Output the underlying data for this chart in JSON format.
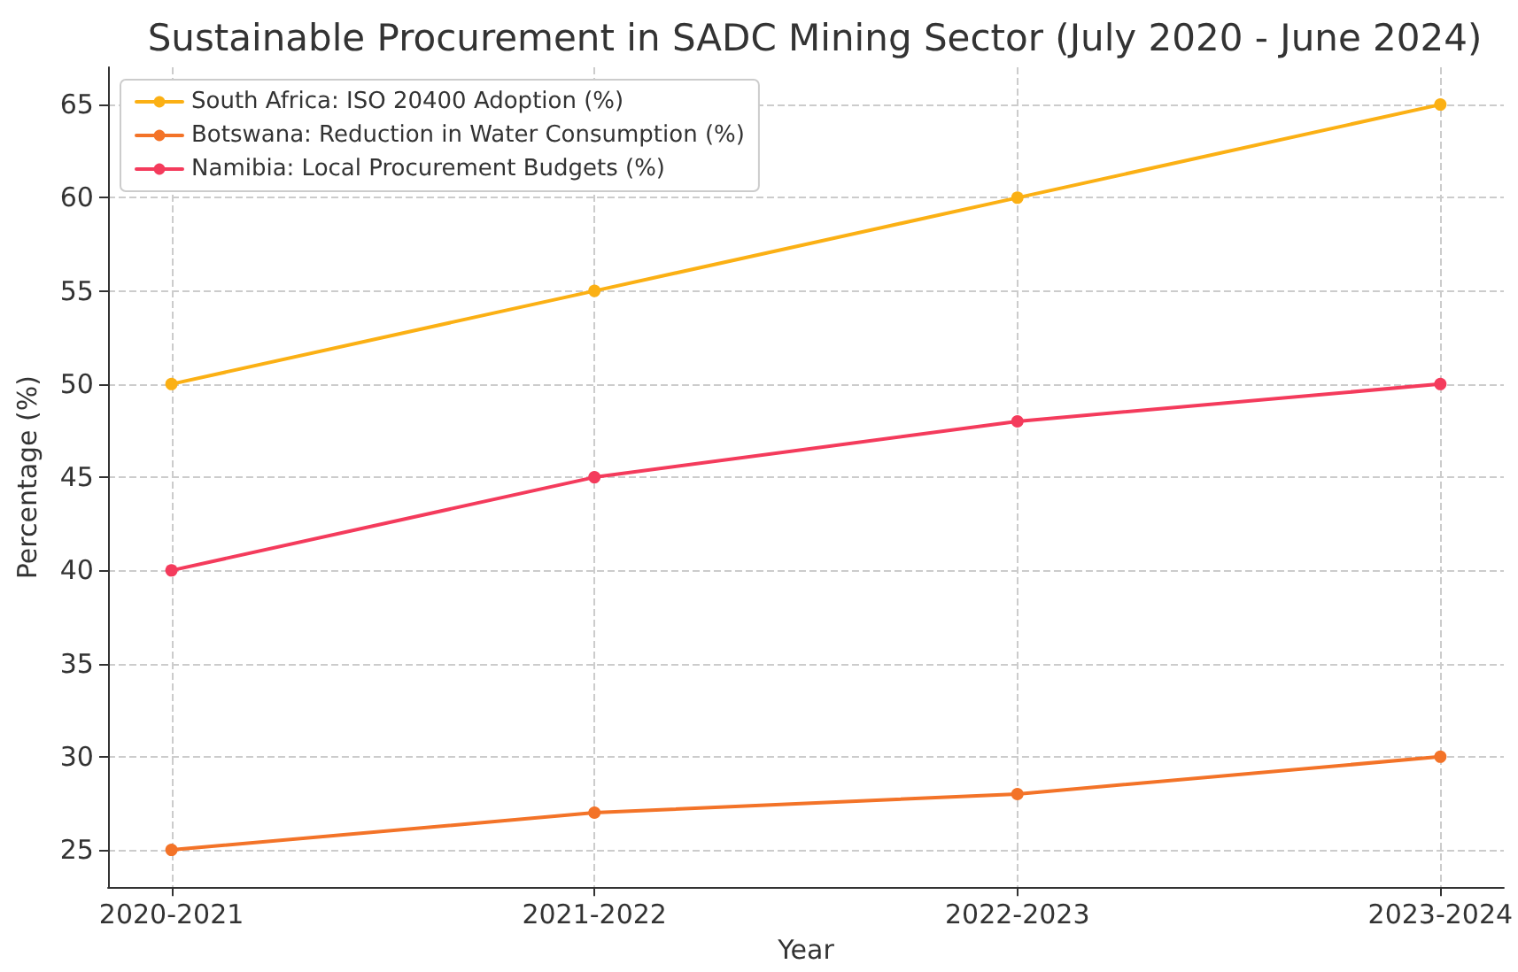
{
  "chart_data": {
    "type": "line",
    "title": "Sustainable Procurement in SADC Mining Sector (July 2020 - June 2024)",
    "xlabel": "Year",
    "ylabel": "Percentage (%)",
    "categories": [
      "2020-2021",
      "2021-2022",
      "2022-2023",
      "2023-2024"
    ],
    "series": [
      {
        "name": "South Africa: ISO 20400 Adoption (%)",
        "color": "#fbb014",
        "values": [
          50,
          55,
          60,
          65
        ]
      },
      {
        "name": "Botswana: Reduction in Water Consumption (%)",
        "color": "#f37328",
        "values": [
          25,
          27,
          28,
          30
        ]
      },
      {
        "name": "Namibia: Local Procurement Budgets (%)",
        "color": "#f43b5c",
        "values": [
          40,
          45,
          48,
          50
        ]
      }
    ],
    "ylim": [
      23,
      67
    ],
    "yticks": [
      25,
      30,
      35,
      40,
      45,
      50,
      55,
      60,
      65
    ],
    "grid": true,
    "legend": "top left",
    "marker": "circle",
    "line_style": "solid"
  }
}
